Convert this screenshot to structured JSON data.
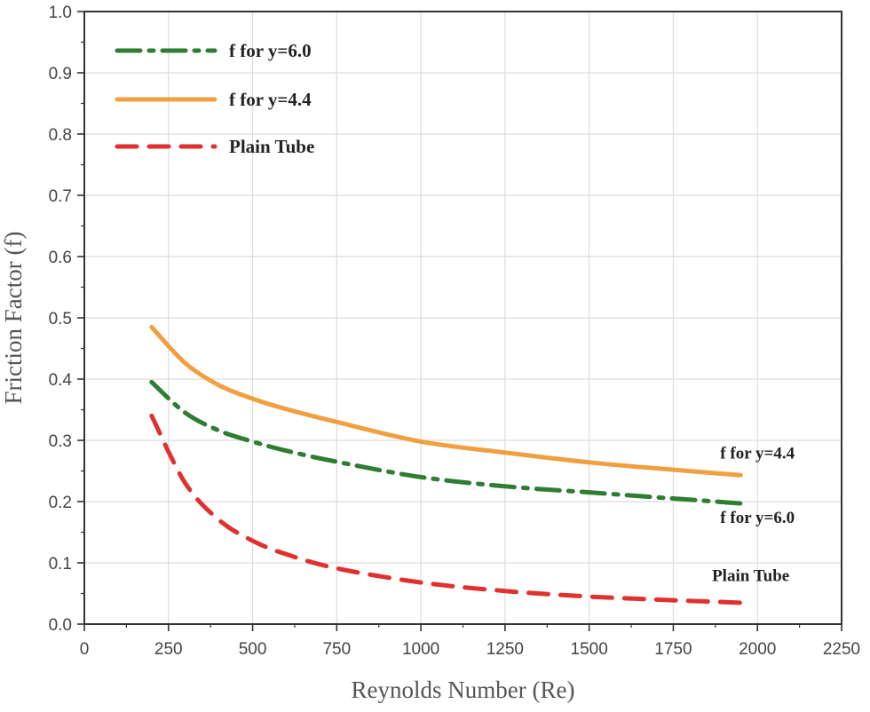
{
  "chart_data": {
    "type": "line",
    "title": "",
    "xlabel": "Reynolds Number (Re)",
    "ylabel": "Friction Factor (f)",
    "xlim": [
      0,
      2250
    ],
    "ylim": [
      0.0,
      1.0
    ],
    "xticks": [
      "0",
      "250",
      "500",
      "750",
      "1000",
      "1250",
      "1500",
      "1750",
      "2000",
      "2250"
    ],
    "yticks": [
      "0.0",
      "0.1",
      "0.2",
      "0.3",
      "0.4",
      "0.5",
      "0.6",
      "0.7",
      "0.8",
      "0.9",
      "1.0"
    ],
    "grid": true,
    "legend_position": "top-left",
    "x": [
      200,
      300,
      400,
      500,
      600,
      750,
      1000,
      1250,
      1500,
      1750,
      1950
    ],
    "series": [
      {
        "name": "f for y=6.0",
        "color": "#2e7d32",
        "style": "dash-dot",
        "values": [
          0.395,
          0.345,
          0.316,
          0.298,
          0.283,
          0.265,
          0.24,
          0.225,
          0.215,
          0.205,
          0.197
        ]
      },
      {
        "name": "f for y=4.4",
        "color": "#f0a040",
        "style": "solid",
        "values": [
          0.485,
          0.426,
          0.39,
          0.368,
          0.351,
          0.33,
          0.298,
          0.28,
          0.264,
          0.252,
          0.243
        ]
      },
      {
        "name": "Plain Tube",
        "color": "#e03030",
        "style": "dashed",
        "values": [
          0.34,
          0.23,
          0.17,
          0.136,
          0.114,
          0.091,
          0.068,
          0.054,
          0.045,
          0.039,
          0.035
        ]
      }
    ],
    "annotations": [
      {
        "text": "f for y=4.4",
        "x": 2000,
        "y": 0.27
      },
      {
        "text": "f for y=6.0",
        "x": 2000,
        "y": 0.165
      },
      {
        "text": "Plain Tube",
        "x": 1980,
        "y": 0.07
      }
    ]
  }
}
